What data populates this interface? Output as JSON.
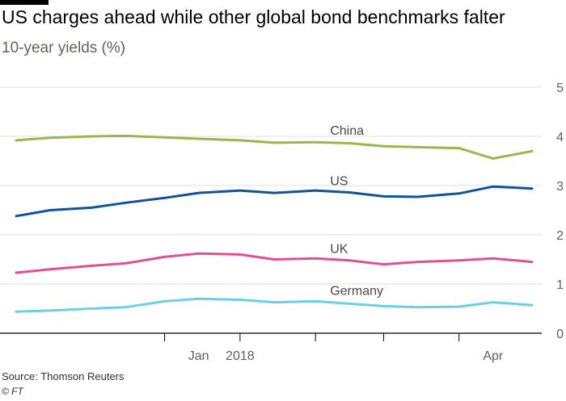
{
  "chart_data": {
    "type": "line",
    "title": "US charges ahead while other global bond benchmarks falter",
    "subtitle": "10-year yields (%)",
    "source": "Source: Thomson Reuters",
    "credit": "© FT",
    "x_tick_labels": [
      "Jan",
      "2018",
      "Apr"
    ],
    "x_ticks": [
      "2017-12-01",
      "2018-01-01",
      "2018-02-01",
      "2018-03-01",
      "2018-04-01"
    ],
    "x_tick_label_positions": [
      "2017-12-15",
      "2018-01-01",
      "2018-04-15"
    ],
    "xlim": [
      "2017-10-01",
      "2018-05-05"
    ],
    "ylim": [
      0,
      5
    ],
    "y_ticks": [
      0,
      1,
      2,
      3,
      4,
      5
    ],
    "y_tick_labels": [
      "0",
      "1",
      "2",
      "3",
      "4",
      "5"
    ],
    "grid": "horizontal",
    "colors": {
      "China": "#96b94c",
      "US": "#0f5499",
      "UK": "#e2508d",
      "Germany": "#6bd0e0",
      "axis": "#000000",
      "grid": "#e6e1dc"
    },
    "x": [
      "2017-10-01",
      "2017-10-15",
      "2017-11-01",
      "2017-11-15",
      "2017-12-01",
      "2017-12-15",
      "2018-01-01",
      "2018-01-15",
      "2018-02-01",
      "2018-02-15",
      "2018-03-01",
      "2018-03-15",
      "2018-04-01",
      "2018-04-15",
      "2018-05-01"
    ],
    "series": [
      {
        "name": "China",
        "label": "China",
        "values": [
          3.92,
          3.97,
          4.0,
          4.01,
          3.98,
          3.95,
          3.92,
          3.87,
          3.88,
          3.86,
          3.8,
          3.78,
          3.76,
          3.55,
          3.7
        ]
      },
      {
        "name": "US",
        "label": "US",
        "values": [
          2.38,
          2.5,
          2.55,
          2.65,
          2.75,
          2.85,
          2.9,
          2.85,
          2.9,
          2.86,
          2.78,
          2.77,
          2.84,
          2.98,
          2.94
        ]
      },
      {
        "name": "UK",
        "label": "UK",
        "values": [
          1.23,
          1.3,
          1.37,
          1.42,
          1.55,
          1.62,
          1.6,
          1.5,
          1.52,
          1.48,
          1.4,
          1.45,
          1.48,
          1.52,
          1.45
        ]
      },
      {
        "name": "Germany",
        "label": "Germany",
        "values": [
          0.44,
          0.46,
          0.5,
          0.53,
          0.65,
          0.7,
          0.68,
          0.63,
          0.65,
          0.6,
          0.55,
          0.53,
          0.54,
          0.63,
          0.57
        ]
      }
    ]
  }
}
